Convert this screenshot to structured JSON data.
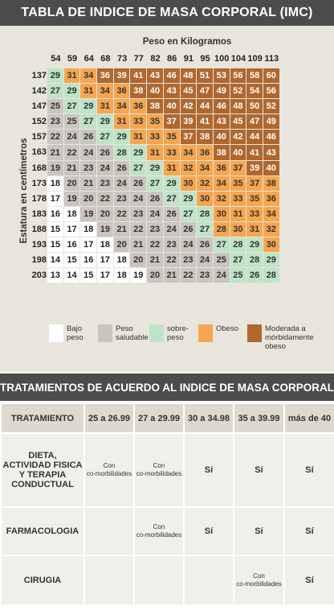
{
  "title": "TABLA DE INDICE DE MASA CORPORAL (IMC)",
  "chart": {
    "x_label": "Peso en Kilogramos",
    "y_label": "Estatura en centímetros",
    "weights": [
      "54",
      "59",
      "64",
      "68",
      "73",
      "77",
      "82",
      "86",
      "91",
      "95",
      "100",
      "104",
      "109",
      "113"
    ],
    "heights": [
      "137",
      "142",
      "147",
      "152",
      "157",
      "163",
      "168",
      "173",
      "178",
      "183",
      "188",
      "193",
      "198",
      "203"
    ],
    "values": [
      [
        29,
        31,
        34,
        36,
        39,
        41,
        43,
        46,
        48,
        51,
        53,
        56,
        58,
        60
      ],
      [
        27,
        29,
        31,
        34,
        36,
        38,
        40,
        43,
        45,
        47,
        49,
        52,
        54,
        56
      ],
      [
        25,
        27,
        29,
        31,
        34,
        36,
        38,
        40,
        42,
        44,
        46,
        48,
        50,
        52
      ],
      [
        23,
        25,
        27,
        29,
        31,
        33,
        35,
        37,
        39,
        41,
        43,
        45,
        47,
        49
      ],
      [
        22,
        24,
        26,
        27,
        29,
        31,
        33,
        35,
        37,
        38,
        40,
        42,
        44,
        46
      ],
      [
        21,
        22,
        24,
        26,
        28,
        29,
        31,
        33,
        34,
        36,
        38,
        40,
        41,
        43
      ],
      [
        19,
        21,
        23,
        24,
        26,
        27,
        29,
        31,
        32,
        34,
        36,
        37,
        39,
        40
      ],
      [
        18,
        20,
        21,
        23,
        24,
        26,
        27,
        29,
        30,
        32,
        34,
        35,
        37,
        38
      ],
      [
        17,
        19,
        20,
        22,
        23,
        24,
        26,
        27,
        29,
        30,
        32,
        33,
        35,
        36
      ],
      [
        16,
        18,
        19,
        20,
        22,
        23,
        24,
        26,
        27,
        28,
        30,
        31,
        33,
        34
      ],
      [
        15,
        17,
        18,
        19,
        21,
        22,
        23,
        24,
        26,
        27,
        28,
        30,
        31,
        32
      ],
      [
        15,
        16,
        17,
        18,
        20,
        21,
        22,
        23,
        24,
        26,
        27,
        28,
        29,
        30
      ],
      [
        14,
        15,
        16,
        17,
        18,
        20,
        21,
        22,
        23,
        24,
        25,
        27,
        28,
        29
      ],
      [
        13,
        14,
        15,
        17,
        18,
        19,
        20,
        21,
        22,
        23,
        24,
        25,
        26,
        28
      ]
    ],
    "categories": [
      [
        2,
        3,
        3,
        4,
        4,
        4,
        4,
        4,
        4,
        4,
        4,
        4,
        4,
        4
      ],
      [
        2,
        2,
        3,
        3,
        3,
        4,
        4,
        4,
        4,
        4,
        4,
        4,
        4,
        4
      ],
      [
        1,
        2,
        2,
        3,
        3,
        3,
        4,
        4,
        4,
        4,
        4,
        4,
        4,
        4
      ],
      [
        1,
        1,
        2,
        2,
        3,
        3,
        3,
        4,
        4,
        4,
        4,
        4,
        4,
        4
      ],
      [
        1,
        1,
        1,
        2,
        2,
        3,
        3,
        3,
        4,
        4,
        4,
        4,
        4,
        4
      ],
      [
        1,
        1,
        1,
        1,
        2,
        2,
        3,
        3,
        3,
        3,
        4,
        4,
        4,
        4
      ],
      [
        1,
        1,
        1,
        1,
        1,
        2,
        2,
        3,
        3,
        3,
        3,
        3,
        4,
        4
      ],
      [
        0,
        1,
        1,
        1,
        1,
        1,
        2,
        2,
        3,
        3,
        3,
        3,
        3,
        3
      ],
      [
        0,
        1,
        1,
        1,
        1,
        1,
        1,
        2,
        2,
        3,
        3,
        3,
        3,
        3
      ],
      [
        0,
        0,
        1,
        1,
        1,
        1,
        1,
        1,
        2,
        2,
        3,
        3,
        3,
        3
      ],
      [
        0,
        0,
        0,
        1,
        1,
        1,
        1,
        1,
        1,
        2,
        3,
        3,
        3,
        3
      ],
      [
        0,
        0,
        0,
        0,
        1,
        1,
        1,
        1,
        1,
        1,
        2,
        2,
        2,
        3
      ],
      [
        0,
        0,
        0,
        0,
        0,
        1,
        1,
        1,
        1,
        1,
        1,
        2,
        2,
        2
      ],
      [
        0,
        0,
        0,
        0,
        0,
        0,
        1,
        1,
        1,
        1,
        1,
        2,
        2,
        2
      ]
    ],
    "colors": {
      "bajo": "#ffffff",
      "saludable": "#c9c5bf",
      "sobrepeso": "#bfe3c6",
      "obeso": "#f6a64f",
      "morbido": "#b0672e"
    }
  },
  "legend": {
    "bajo": [
      "Bajo",
      "peso"
    ],
    "saludable": [
      "Peso",
      "saludable"
    ],
    "sobrepeso": [
      "sobre-",
      "peso"
    ],
    "obeso": [
      "Obeso"
    ],
    "morbido": [
      "Moderada a",
      "mórbidamente",
      "obeso"
    ]
  },
  "treatments": {
    "title": "TRATAMIENTOS DE ACUERDO AL INDICE DE MASA CORPORAL",
    "headers": [
      "TRATAMIENTO",
      "25 a 26.99",
      "27 a 29.99",
      "30 a 34.98",
      "35 a 39.99",
      "más de 40"
    ],
    "dieta": [
      "DIETA,",
      "ACTIVIDAD FISICA",
      "Y TERAPIA",
      "CONDUCTUAL"
    ],
    "farmacologia": "FARMACOLOGIA",
    "cirugia": "CIRUGIA",
    "con": "Con",
    "comorb": "co-morbilidades",
    "si": "Sí"
  }
}
